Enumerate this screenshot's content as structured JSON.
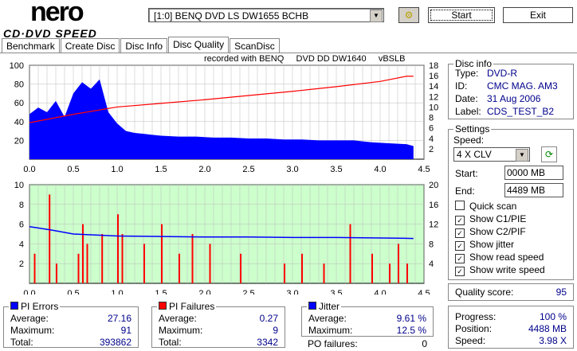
{
  "app": {
    "logo_top": "nero",
    "logo_bottom": "CD·DVD SPEED"
  },
  "toolbar": {
    "drive": "[1:0]   BENQ DVD LS DW1655 BCHB",
    "start": "Start",
    "exit": "Exit"
  },
  "tabs": [
    "Benchmark",
    "Create Disc",
    "Disc Info",
    "Disc Quality",
    "ScanDisc"
  ],
  "recorded_with": "recorded with BENQ     DVD DD DW1640     vBSLB",
  "disc_info": {
    "title": "Disc info",
    "rows": [
      {
        "k": "Type:",
        "v": "DVD-R"
      },
      {
        "k": "ID:",
        "v": "CMC MAG. AM3"
      },
      {
        "k": "Date:",
        "v": "31 Aug 2006"
      },
      {
        "k": "Label:",
        "v": "CDS_TEST_B2"
      }
    ]
  },
  "settings": {
    "title": "Settings",
    "speed_label": "Speed:",
    "speed": "4 X CLV",
    "start_label": "Start:",
    "start": "0000 MB",
    "end_label": "End:",
    "end": "4489 MB",
    "checks": [
      {
        "label": "Quick scan",
        "checked": false
      },
      {
        "label": "Show C1/PIE",
        "checked": true
      },
      {
        "label": "Show C2/PIF",
        "checked": true
      },
      {
        "label": "Show jitter",
        "checked": true
      },
      {
        "label": "Show read speed",
        "checked": true
      },
      {
        "label": "Show write speed",
        "checked": true
      }
    ]
  },
  "quality": {
    "label": "Quality score:",
    "value": "95"
  },
  "progress": {
    "rows": [
      {
        "k": "Progress:",
        "v": "100 %"
      },
      {
        "k": "Position:",
        "v": "4488 MB"
      },
      {
        "k": "Speed:",
        "v": "3.98 X"
      }
    ]
  },
  "pi_errors": {
    "title": "PI Errors",
    "rows": [
      {
        "k": "Average:",
        "v": "27.16"
      },
      {
        "k": "Maximum:",
        "v": "91"
      },
      {
        "k": "Total:",
        "v": "393862"
      }
    ]
  },
  "pi_failures": {
    "title": "PI Failures",
    "rows": [
      {
        "k": "Average:",
        "v": "0.27"
      },
      {
        "k": "Maximum:",
        "v": "9"
      },
      {
        "k": "Total:",
        "v": "3342"
      }
    ]
  },
  "jitter": {
    "title": "Jitter",
    "rows": [
      {
        "k": "Average:",
        "v": "9.61 %"
      },
      {
        "k": "Maximum:",
        "v": "12.5 %"
      }
    ],
    "po_label": "PO failures:",
    "po": "0"
  },
  "colors": {
    "pie": "#0000ff",
    "pif": "#ff0000",
    "jitter": "#0000ff",
    "speed": "#ff0000",
    "lower_bg": "#ccffcc"
  },
  "chart_data": [
    {
      "type": "area",
      "name": "PI errors",
      "xlim": [
        0,
        4.5
      ],
      "ylim": [
        0,
        100
      ],
      "y2lim": [
        0,
        18
      ],
      "xticks": [
        "0.0",
        "0.5",
        "1.0",
        "1.5",
        "2.0",
        "2.5",
        "3.0",
        "3.5",
        "4.0",
        "4.5"
      ],
      "yticks": [
        "100",
        "80",
        "60",
        "40",
        "20"
      ],
      "y2ticks": [
        "18",
        "16",
        "14",
        "12",
        "10",
        "8",
        "6",
        "4",
        "2"
      ],
      "x": [
        0,
        0.1,
        0.2,
        0.3,
        0.4,
        0.5,
        0.6,
        0.7,
        0.8,
        0.9,
        1.0,
        1.1,
        1.2,
        1.3,
        1.4,
        1.5,
        1.7,
        1.9,
        2.1,
        2.3,
        2.5,
        2.7,
        2.9,
        3.1,
        3.3,
        3.5,
        3.7,
        3.9,
        4.1,
        4.3,
        4.38
      ],
      "pie": [
        48,
        55,
        50,
        62,
        45,
        70,
        82,
        75,
        85,
        50,
        38,
        30,
        28,
        27,
        26,
        25,
        24,
        24,
        23,
        23,
        22,
        22,
        21,
        21,
        20,
        20,
        20,
        18,
        17,
        16,
        14
      ],
      "read_speed_x": [
        0,
        0.5,
        1.0,
        1.5,
        2.0,
        2.5,
        3.0,
        3.5,
        4.0,
        4.3,
        4.38
      ],
      "read_speed": [
        7,
        8.6,
        10,
        10.7,
        11.4,
        12.2,
        13,
        13.9,
        14.9,
        15.9,
        15.9
      ]
    },
    {
      "type": "bar",
      "name": "PI failures / jitter",
      "xlim": [
        0,
        4.5
      ],
      "ylim": [
        0,
        10
      ],
      "y2lim": [
        0,
        20
      ],
      "yticks": [
        "10",
        "8",
        "6",
        "4",
        "2"
      ],
      "y2ticks": [
        "20",
        "16",
        "12",
        "8",
        "4"
      ],
      "pif_x": [
        0.05,
        0.22,
        0.3,
        0.55,
        0.6,
        0.65,
        0.82,
        1.0,
        1.05,
        1.3,
        1.5,
        1.7,
        1.85,
        2.05,
        2.4,
        2.9,
        3.1,
        3.35,
        3.65,
        3.9,
        4.1,
        4.2,
        4.3
      ],
      "pif": [
        3,
        9,
        2,
        3,
        6,
        4,
        5,
        7,
        5,
        4,
        6,
        3,
        5,
        4,
        3,
        2,
        3,
        2,
        6,
        3,
        2,
        4,
        2
      ],
      "jitter_x": [
        0,
        0.25,
        0.5,
        1.0,
        1.5,
        2.0,
        2.5,
        3.0,
        3.5,
        4.0,
        4.38
      ],
      "jitter": [
        11.5,
        10.8,
        10,
        9.6,
        9.5,
        9.4,
        9.4,
        9.3,
        9.3,
        9.2,
        9.1
      ]
    }
  ]
}
